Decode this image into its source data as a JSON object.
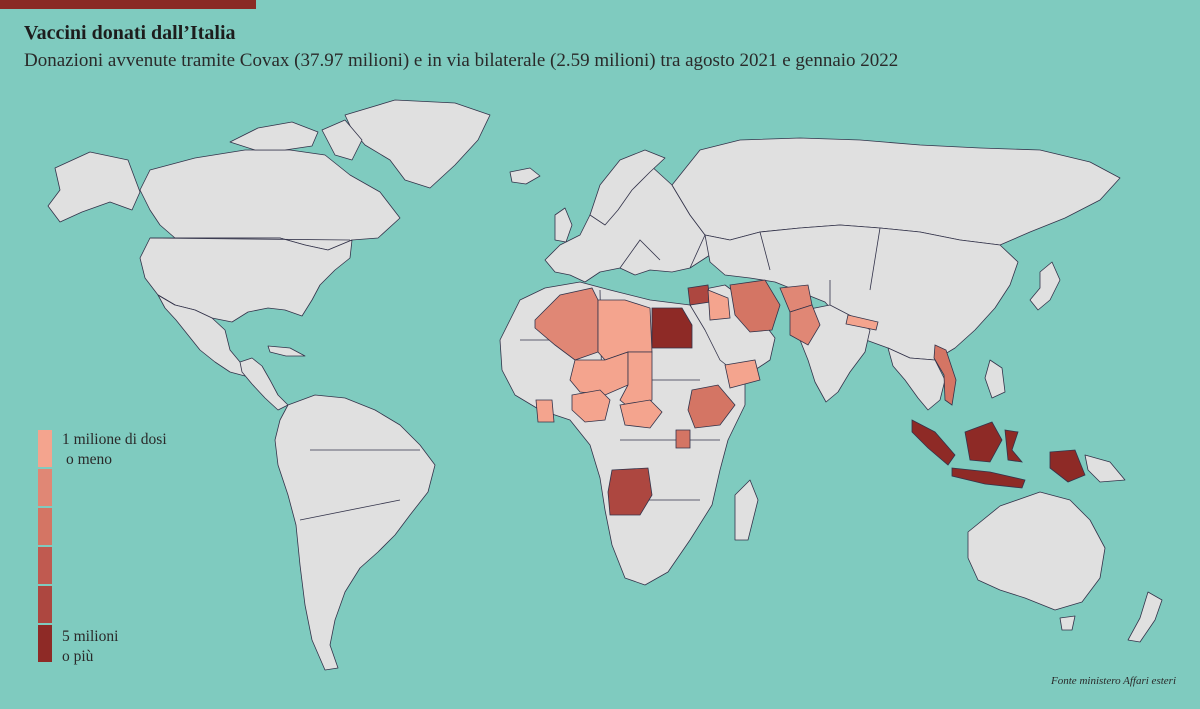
{
  "header": {
    "title": "Vaccini donati dall’Italia",
    "subtitle": "Donazioni avvenute tramite Covax (37.97 milioni) e in via bilaterale (2.59 milioni) tra agosto 2021 e gennaio 2022"
  },
  "legend": {
    "low_label_line1": "1 milione di dosi",
    "low_label_line2": "o meno",
    "high_label_line1": "5 milioni",
    "high_label_line2": "o più",
    "scale": [
      "#f4a48e",
      "#e08775",
      "#d47564",
      "#c05a50",
      "#ad4740",
      "#8e2a26"
    ]
  },
  "colors": {
    "ocean": "#7fcbbf",
    "land": "#e0e0e0",
    "border": "#33334a",
    "accent": "#8a2a24"
  },
  "source": "Fonte ministero Affari esteri"
}
